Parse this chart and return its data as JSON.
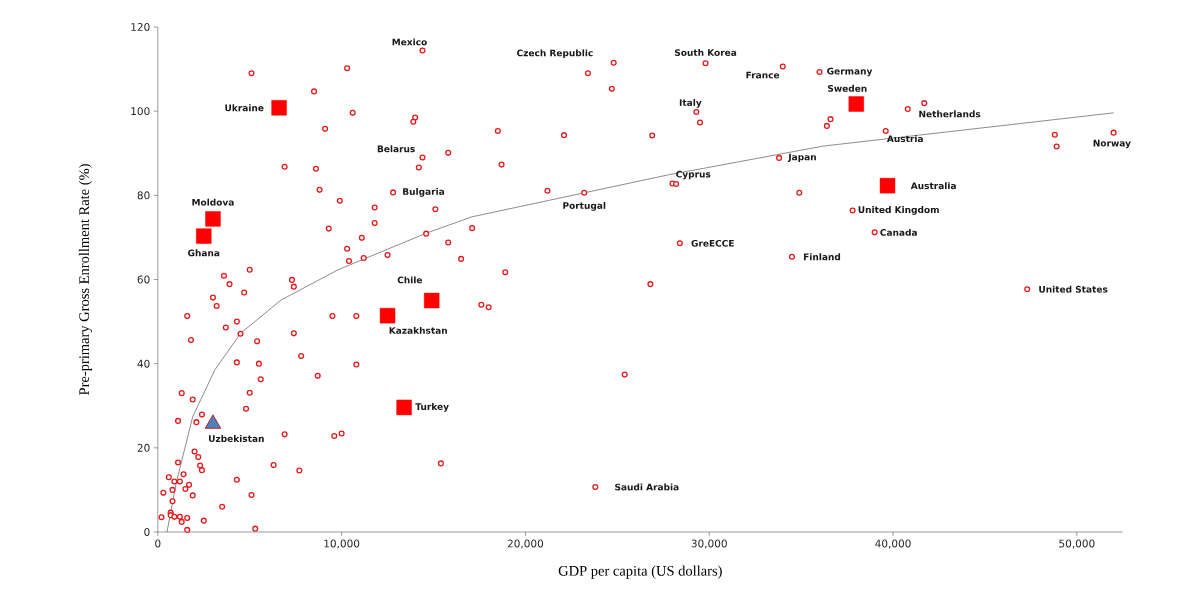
{
  "chart_data": {
    "type": "scatter",
    "xlabel": "GDP per capita (US dollars)",
    "ylabel": "Pre-primary Gross Enrollment Rate (%)",
    "xlim": [
      0,
      52500
    ],
    "ylim": [
      0,
      120
    ],
    "xticks": [
      {
        "value": 0,
        "label": "0"
      },
      {
        "value": 10000,
        "label": "10,000"
      },
      {
        "value": 20000,
        "label": "20,000"
      },
      {
        "value": 30000,
        "label": "30,000"
      },
      {
        "value": 40000,
        "label": "40,000"
      },
      {
        "value": 50000,
        "label": "50,000"
      }
    ],
    "yticks": [
      0,
      20,
      40,
      60,
      80,
      100,
      120
    ],
    "series": [
      {
        "marker": "circle",
        "color": "#e31a1c",
        "x": [
          5100,
          10300,
          14400,
          8500,
          10600,
          9100,
          14000,
          13900,
          15800,
          14400,
          14200,
          6900,
          8600,
          8800,
          12800,
          9900,
          11800,
          15100,
          11800,
          9300,
          17100,
          11100,
          14600,
          15800,
          10300,
          10400,
          11200,
          12500,
          16500,
          5000,
          3600,
          7300,
          7400,
          3900,
          4700,
          3000,
          3200,
          1600,
          9500,
          10800,
          4300,
          3700,
          4500,
          7400,
          1800,
          5400,
          7800,
          4300,
          5500,
          10800,
          8700,
          5600,
          1300,
          5000,
          1900,
          4800,
          2400,
          1100,
          2100,
          6900,
          9600,
          10000,
          2000,
          2200,
          2300,
          2400,
          1100,
          6300,
          7700,
          15400,
          600,
          1400,
          900,
          1200,
          1700,
          1500,
          800,
          300,
          1900,
          4300,
          5100,
          800,
          3500,
          700,
          700,
          200,
          900,
          1200,
          1600,
          1300,
          2500,
          1600,
          5300,
          17600,
          18000,
          24800,
          23400,
          24700,
          29800,
          34000,
          36000,
          29300,
          29500,
          18500,
          22100,
          26900,
          18700,
          33800,
          21200,
          23200,
          28000,
          28200,
          34900,
          28400,
          34500,
          18900,
          26800,
          25400,
          23800,
          40800,
          41700,
          36600,
          36400,
          39600,
          48800,
          48900,
          52000,
          37800,
          39000,
          47300
        ],
        "values": [
          109,
          110.2,
          114.4,
          104.7,
          99.6,
          95.8,
          98.5,
          97.5,
          90.1,
          89,
          86.6,
          86.8,
          86.3,
          81.3,
          80.7,
          78.7,
          77.1,
          76.7,
          73.4,
          72.1,
          72.2,
          69.9,
          70.9,
          68.8,
          67.3,
          64.4,
          65.1,
          65.8,
          64.9,
          62.3,
          60.9,
          59.9,
          58.3,
          58.9,
          56.9,
          55.7,
          53.7,
          51.3,
          51.3,
          51.3,
          50,
          48.6,
          47.1,
          47.2,
          45.6,
          45.3,
          41.8,
          40.3,
          40,
          39.8,
          37.1,
          36.3,
          33,
          33.1,
          31.5,
          29.3,
          27.9,
          26.4,
          26.1,
          23.2,
          22.8,
          23.4,
          19.1,
          17.8,
          15.8,
          14.7,
          16.5,
          15.9,
          14.6,
          16.3,
          13,
          13.7,
          12,
          12,
          11.2,
          10.2,
          10,
          9.3,
          8.7,
          12.4,
          8.8,
          7.3,
          6,
          4.6,
          4,
          3.5,
          3.6,
          3.6,
          3.3,
          2.4,
          2.7,
          0.5,
          0.8,
          54,
          53.4,
          111.5,
          109,
          105.3,
          111.4,
          110.6,
          109.3,
          99.8,
          97.3,
          95.3,
          94.3,
          94.2,
          87.3,
          88.9,
          81.1,
          80.6,
          82.8,
          82.7,
          80.6,
          68.6,
          65.4,
          61.7,
          58.9,
          37.4,
          10.7,
          100.5,
          101.9,
          98.1,
          96.5,
          95.3,
          94.4,
          91.6,
          94.9,
          76.4,
          71.2,
          57.7
        ]
      },
      {
        "marker": "square",
        "color": "#ff0000",
        "x": [
          6600,
          3000,
          2500,
          12500,
          14900,
          13400,
          38000,
          39700
        ],
        "values": [
          100.8,
          74.4,
          70.3,
          51.4,
          55,
          29.6,
          101.7,
          82.3
        ]
      },
      {
        "marker": "triangle",
        "color": "#4f81bd",
        "x": [
          3000
        ],
        "values": [
          25.7
        ]
      },
      {
        "type": "line",
        "line_style": "solid",
        "color": "#404040",
        "x": [
          500,
          1000,
          1900,
          3100,
          4500,
          6700,
          9800,
          14600,
          17100,
          27700,
          36200,
          52000
        ],
        "values": [
          0,
          11.6,
          27.4,
          38.5,
          47.2,
          55.1,
          62.3,
          71,
          74.9,
          84.8,
          91.7,
          99.6
        ]
      }
    ],
    "annotations": [
      {
        "text": "Mexico",
        "x": 14400,
        "y": 114.4
      },
      {
        "text": "Ukraine",
        "x": 6600,
        "y": 100.8
      },
      {
        "text": "Belarus",
        "x": 14400,
        "y": 89
      },
      {
        "text": "Bulgaria",
        "x": 12800,
        "y": 80.7
      },
      {
        "text": "Moldova",
        "x": 3000,
        "y": 74.4
      },
      {
        "text": "Ghana",
        "x": 2500,
        "y": 70.3
      },
      {
        "text": "Chile",
        "x": 14900,
        "y": 55
      },
      {
        "text": "Kazakhstan",
        "x": 12500,
        "y": 51.4
      },
      {
        "text": "Turkey",
        "x": 13400,
        "y": 29.6
      },
      {
        "text": "Uzbekistan",
        "x": 3000,
        "y": 25.7
      },
      {
        "text": "Czech Republic",
        "x": 23400,
        "y": 109
      },
      {
        "text": "South Korea",
        "x": 29800,
        "y": 111.4
      },
      {
        "text": "France",
        "x": 34000,
        "y": 110.6
      },
      {
        "text": "Germany",
        "x": 36000,
        "y": 109.3
      },
      {
        "text": "Sweden",
        "x": 38000,
        "y": 101.7
      },
      {
        "text": "Italy",
        "x": 29300,
        "y": 99.8
      },
      {
        "text": "Netherlands",
        "x": 41700,
        "y": 101.9
      },
      {
        "text": "Austria",
        "x": 39600,
        "y": 95.3
      },
      {
        "text": "Norway",
        "x": 52000,
        "y": 94.9
      },
      {
        "text": "Japan",
        "x": 33800,
        "y": 88.9
      },
      {
        "text": "Cyprus",
        "x": 28000,
        "y": 82.8
      },
      {
        "text": "Portugal",
        "x": 23200,
        "y": 80.6
      },
      {
        "text": "GreECCE",
        "x": 28400,
        "y": 68.6
      },
      {
        "text": "Finland",
        "x": 34500,
        "y": 65.4
      },
      {
        "text": "Australia",
        "x": 39700,
        "y": 82.3
      },
      {
        "text": "United Kingdom",
        "x": 37800,
        "y": 76.4
      },
      {
        "text": "Canada",
        "x": 39000,
        "y": 71.2
      },
      {
        "text": "United States",
        "x": 47300,
        "y": 57.7
      },
      {
        "text": "Saudi Arabia",
        "x": 23800,
        "y": 10.7
      }
    ]
  }
}
